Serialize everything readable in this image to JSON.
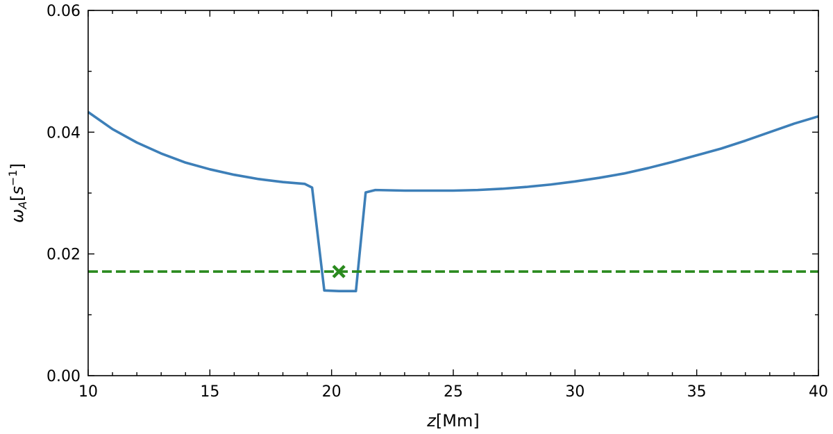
{
  "chart_data": {
    "type": "line",
    "title": "",
    "xlabel": "z[Mm]",
    "ylabel": "ωA[s−1]",
    "xlim": [
      10,
      40
    ],
    "ylim": [
      0.0,
      0.06
    ],
    "x_ticks": [
      10,
      15,
      20,
      25,
      30,
      35,
      40
    ],
    "x_tick_labels": [
      "10",
      "15",
      "20",
      "25",
      "30",
      "35",
      "40"
    ],
    "x_minor_ticks": [
      11,
      12,
      13,
      14,
      16,
      17,
      18,
      19,
      21,
      22,
      23,
      24,
      26,
      27,
      28,
      29,
      31,
      32,
      33,
      34,
      36,
      37,
      38,
      39
    ],
    "y_ticks": [
      0.0,
      0.02,
      0.04,
      0.06
    ],
    "y_tick_labels": [
      "0.00",
      "0.02",
      "0.04",
      "0.06"
    ],
    "y_minor_ticks": [
      0.01,
      0.03,
      0.05
    ],
    "grid": false,
    "series": [
      {
        "color": "#3d7fb8",
        "style": "solid",
        "x": [
          10,
          11,
          12,
          13,
          14,
          15,
          16,
          17,
          18,
          18.9,
          19.2,
          19.7,
          20.3,
          21.0,
          21.4,
          21.8,
          23,
          24,
          25,
          26,
          27,
          28,
          29,
          30,
          31,
          32,
          33,
          34,
          35,
          36,
          37,
          38,
          39,
          40
        ],
        "y": [
          0.0433,
          0.0405,
          0.0383,
          0.0365,
          0.035,
          0.0339,
          0.033,
          0.0323,
          0.0318,
          0.0315,
          0.0309,
          0.014,
          0.0139,
          0.0139,
          0.0301,
          0.0305,
          0.0304,
          0.0304,
          0.0304,
          0.0305,
          0.0307,
          0.031,
          0.0314,
          0.0319,
          0.0325,
          0.0332,
          0.0341,
          0.0351,
          0.0362,
          0.0373,
          0.0386,
          0.04,
          0.0414,
          0.0426
        ]
      },
      {
        "color": "#2a8a1e",
        "style": "dashed",
        "x": [
          10,
          40
        ],
        "y": [
          0.0171,
          0.0171
        ]
      }
    ],
    "markers": [
      {
        "x": 20.3,
        "y": 0.0171,
        "symbol": "x",
        "color": "#2a8a1e"
      }
    ]
  }
}
